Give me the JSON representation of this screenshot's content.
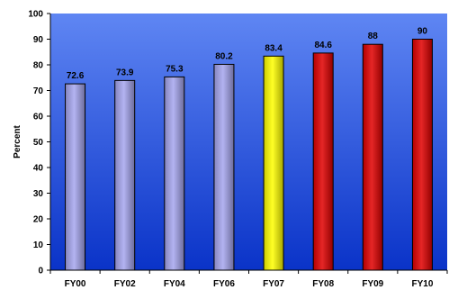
{
  "chart_data": {
    "type": "bar",
    "title": "",
    "xlabel": "",
    "ylabel": "Percent",
    "ylim": [
      0,
      100
    ],
    "yticks": [
      0,
      10,
      20,
      30,
      40,
      50,
      60,
      70,
      80,
      90,
      100
    ],
    "grid": false,
    "legend": "none",
    "categories": [
      "FY00",
      "FY02",
      "FY04",
      "FY06",
      "FY07",
      "FY08",
      "FY09",
      "FY10"
    ],
    "values": [
      72.6,
      73.9,
      75.3,
      80.2,
      83.4,
      84.6,
      88,
      90
    ],
    "data_labels": [
      "72.6",
      "73.9",
      "75.3",
      "80.2",
      "83.4",
      "84.6",
      "88",
      "90"
    ],
    "bar_colors": [
      "#a6a6ee",
      "#a6a6ee",
      "#a6a6ee",
      "#a6a6ee",
      "#ffff00",
      "#e00000",
      "#e00000",
      "#e00000"
    ],
    "plot_background": [
      "#5f86f3",
      "#0a33c8"
    ]
  }
}
